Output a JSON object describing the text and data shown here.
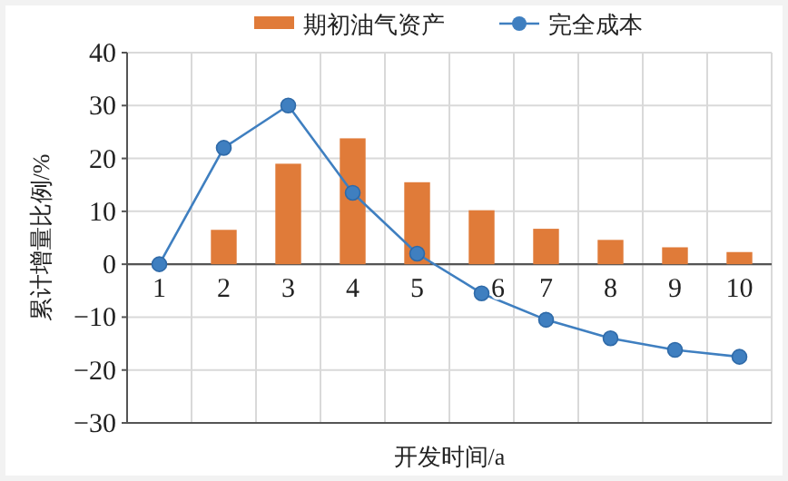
{
  "chart_data": {
    "type": "bar",
    "xlabel": "开发时间/a",
    "ylabel": "累计增量比例/%",
    "categories": [
      "1",
      "2",
      "3",
      "4",
      "5",
      "6",
      "7",
      "8",
      "9",
      "10"
    ],
    "series": [
      {
        "name": "期初油气资产",
        "type": "bar",
        "color": "#e07b39",
        "values": [
          null,
          6.5,
          19,
          23.8,
          15.5,
          10.2,
          6.7,
          4.6,
          3.2,
          2.3
        ]
      },
      {
        "name": "完全成本",
        "type": "line",
        "color": "#3f7fc0",
        "marker": "circle",
        "values": [
          0,
          22,
          30,
          13.5,
          2,
          -5.5,
          -10.5,
          -14,
          -16.2,
          -17.5
        ]
      }
    ],
    "ylim": [
      -30,
      40
    ],
    "yticks": [
      {
        "value": -30,
        "label": "−30"
      },
      {
        "value": -20,
        "label": "−20"
      },
      {
        "value": -10,
        "label": "−10"
      },
      0,
      10,
      20,
      30,
      40
    ],
    "grid": true,
    "legend": "top"
  }
}
